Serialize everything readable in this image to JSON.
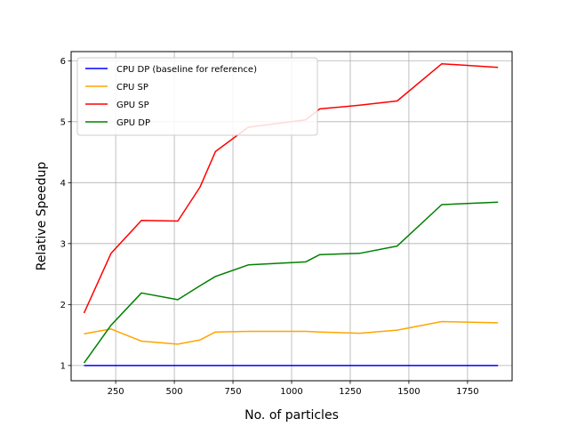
{
  "chart_data": {
    "type": "line",
    "title": "",
    "xlabel": "No. of particles",
    "ylabel": "Relative Speedup",
    "xlim": [
      60,
      1940
    ],
    "ylim": [
      0.75,
      6.15
    ],
    "xticks": [
      250,
      500,
      750,
      1000,
      1250,
      1500,
      1750
    ],
    "yticks": [
      1,
      2,
      3,
      4,
      5,
      6
    ],
    "grid": true,
    "legend_position": "top-left",
    "series": [
      {
        "name": "CPU DP (baseline for reference)",
        "color": "#0000ff",
        "x": [
          115,
          230,
          360,
          515,
          610,
          675,
          815,
          1060,
          1120,
          1290,
          1450,
          1640,
          1880
        ],
        "y": [
          1,
          1,
          1,
          1,
          1,
          1,
          1,
          1,
          1,
          1,
          1,
          1,
          1
        ]
      },
      {
        "name": "CPU SP",
        "color": "#ffa500",
        "x": [
          115,
          230,
          360,
          515,
          610,
          675,
          815,
          1060,
          1120,
          1290,
          1450,
          1640,
          1880
        ],
        "y": [
          1.52,
          1.6,
          1.4,
          1.35,
          1.42,
          1.55,
          1.56,
          1.56,
          1.55,
          1.53,
          1.58,
          1.72,
          1.7
        ]
      },
      {
        "name": "GPU SP",
        "color": "#ff0000",
        "x": [
          115,
          230,
          360,
          515,
          610,
          675,
          815,
          1060,
          1120,
          1290,
          1450,
          1640,
          1880
        ],
        "y": [
          1.86,
          2.84,
          3.38,
          3.37,
          3.93,
          4.51,
          4.91,
          5.03,
          5.21,
          5.27,
          5.34,
          5.95,
          5.89
        ]
      },
      {
        "name": "GPU DP",
        "color": "#008000",
        "x": [
          115,
          230,
          360,
          515,
          610,
          675,
          815,
          1060,
          1120,
          1290,
          1450,
          1640,
          1880
        ],
        "y": [
          1.04,
          1.66,
          2.19,
          2.08,
          2.31,
          2.46,
          2.65,
          2.7,
          2.82,
          2.84,
          2.96,
          3.64,
          3.68
        ]
      }
    ]
  }
}
